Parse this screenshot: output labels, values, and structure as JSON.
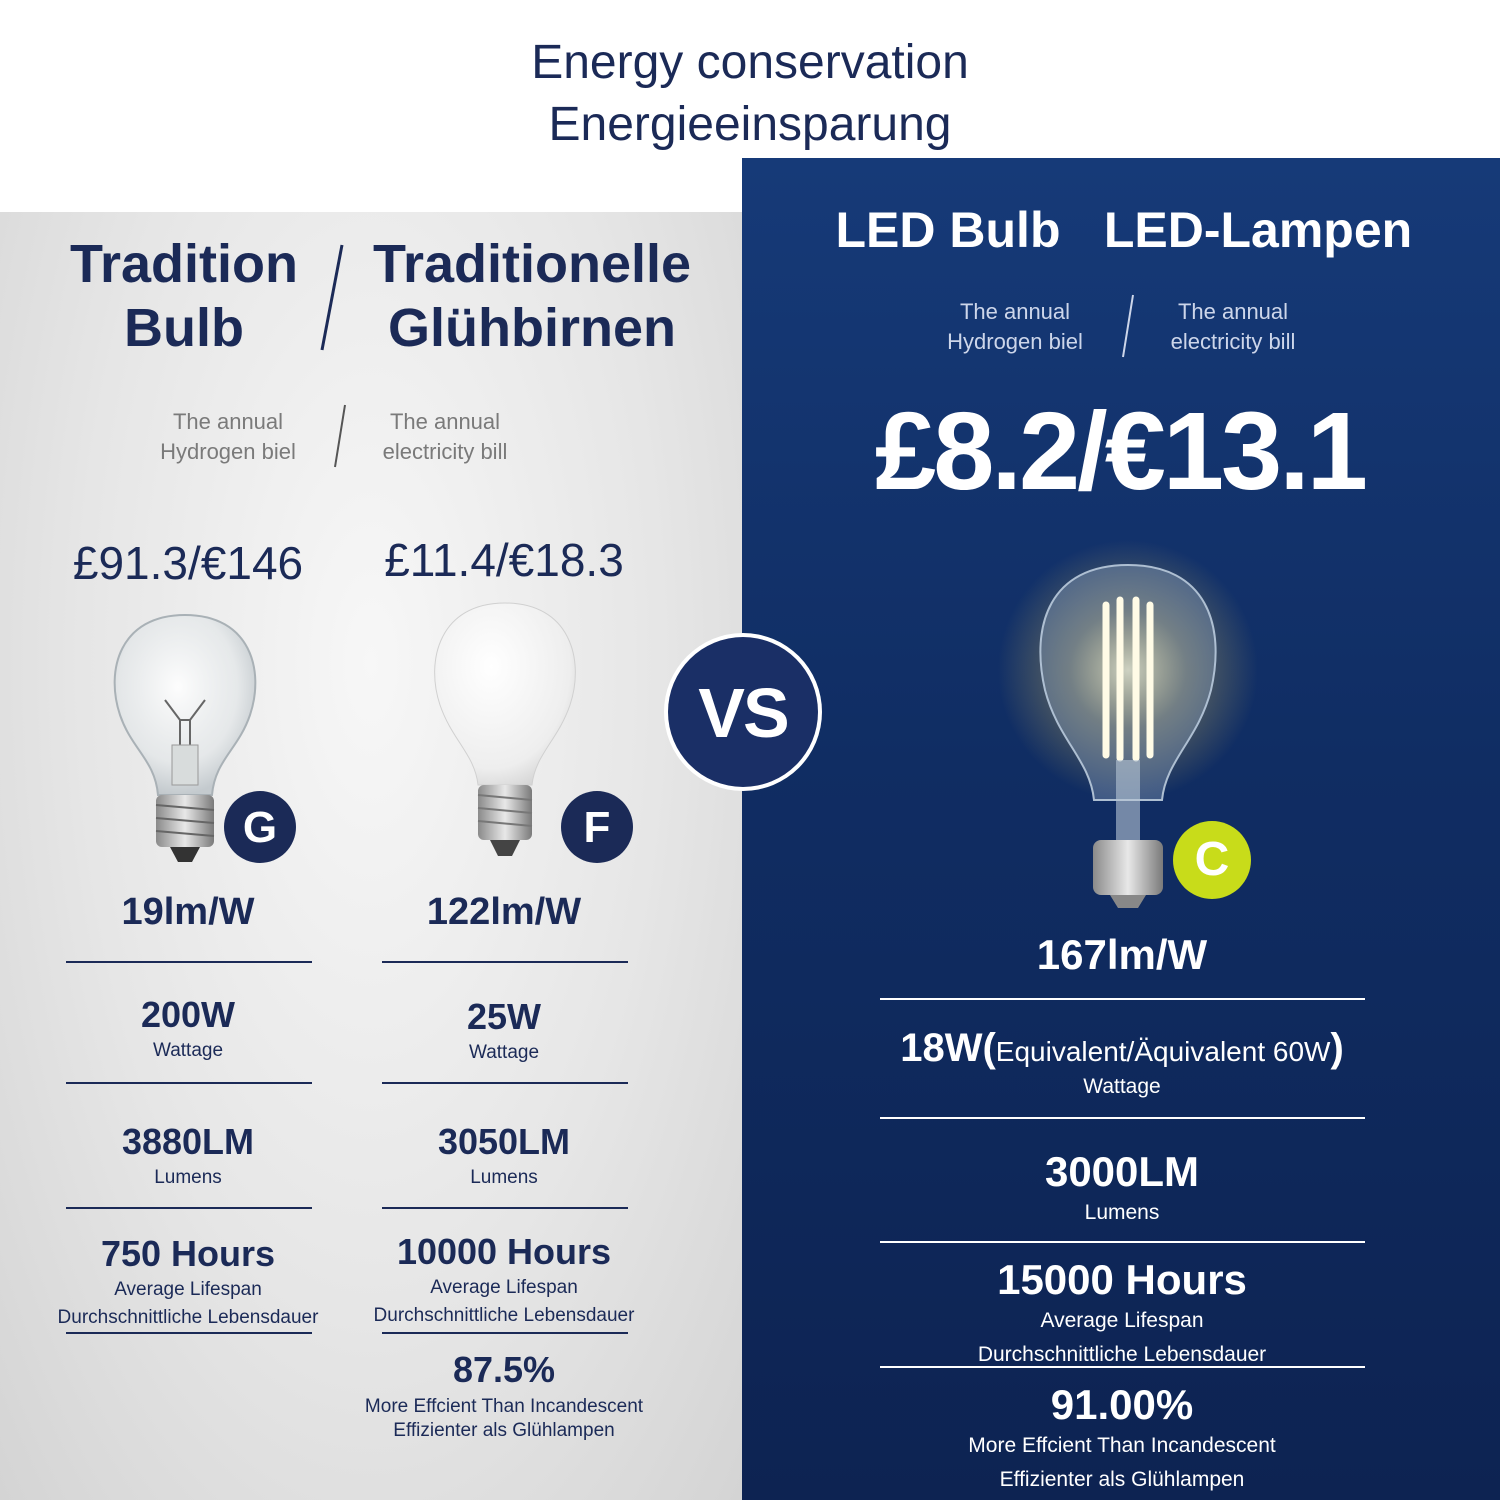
{
  "title": [
    "Energy conservation",
    "Energieeinsparung"
  ],
  "vs": "VS",
  "traditional": {
    "heading_left": [
      "Tradition",
      "Bulb"
    ],
    "heading_right": [
      "Traditionelle",
      "Glühbirnen"
    ],
    "bill_labels": {
      "left": [
        "The annual",
        "Hydrogen biel"
      ],
      "right": [
        "The annual",
        "electricity bill"
      ]
    },
    "bulbs": [
      {
        "price": "£91.3/€146",
        "grade": "G",
        "efficacy": "19lm/W",
        "wattage": "200W",
        "wattage_label": "Wattage",
        "lumens": "3880LM",
        "lumens_label": "Lumens",
        "hours": "750 Hours",
        "lifespan_label": [
          "Average Lifespan",
          "Durchschnittliche Lebensdauer"
        ]
      },
      {
        "price": "£11.4/€18.3",
        "grade": "F",
        "efficacy": "122lm/W",
        "wattage": "25W",
        "wattage_label": "Wattage",
        "lumens": "3050LM",
        "lumens_label": "Lumens",
        "hours": "10000 Hours",
        "lifespan_label": [
          "Average Lifespan",
          "Durchschnittliche Lebensdauer"
        ],
        "efficiency": "87.5%",
        "efficiency_label": [
          "More Effcient Than Incandescent",
          "Effizienter als Glühlampen"
        ]
      }
    ]
  },
  "led": {
    "heading": [
      "LED Bulb",
      "LED-Lampen"
    ],
    "bill_labels": {
      "left": [
        "The annual",
        "Hydrogen biel"
      ],
      "right": [
        "The annual",
        "electricity bill"
      ]
    },
    "price": "£8.2/€13.1",
    "grade": "C",
    "efficacy": "167lm/W",
    "wattage": "18W(",
    "wattage_note": "Equivalent/Äquivalent 60W",
    "wattage_close": ")",
    "wattage_label": "Wattage",
    "lumens": "3000LM",
    "lumens_label": "Lumens",
    "hours": "15000 Hours",
    "lifespan_label": [
      "Average Lifespan",
      "Durchschnittliche Lebensdauer"
    ],
    "efficiency": "91.00%",
    "efficiency_label": [
      "More Effcient Than Incandescent",
      "Effizienter als Glühlampen"
    ]
  }
}
